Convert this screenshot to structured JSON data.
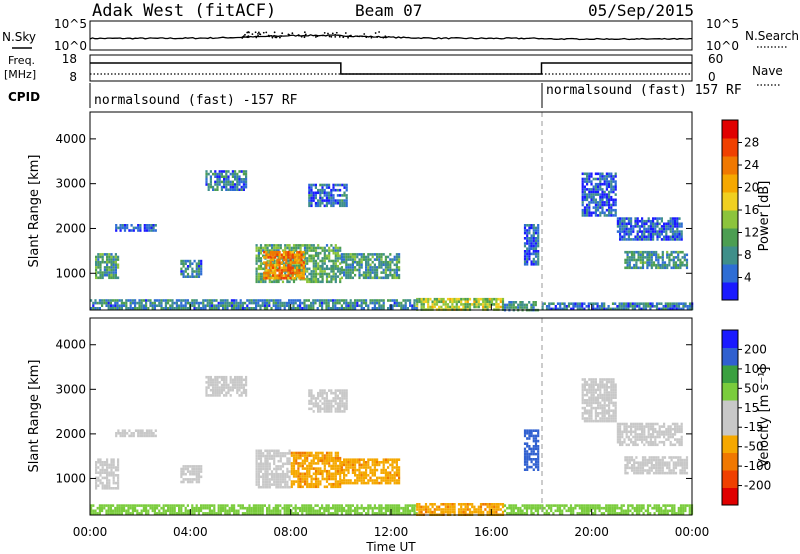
{
  "header": {
    "station": "Adak West (fitACF)",
    "beam": "Beam 07",
    "date": "05/Sep/2015"
  },
  "noise_panel": {
    "left_label": "N.Sky",
    "right_label": "N.Search",
    "left_ticks": [
      "10^5",
      "10^0"
    ],
    "right_ticks": [
      "10^5",
      "10^0"
    ]
  },
  "freq_panel": {
    "left_label_line1": "Freq.",
    "left_label_line2": "[MHz]",
    "right_label": "Nave",
    "left_ticks": [
      "18",
      "8"
    ],
    "right_ticks": [
      "60",
      "0"
    ]
  },
  "cpid": {
    "label": "CPID",
    "segments": [
      {
        "start_hour": 0,
        "text": "normalsound (fast) -157 RF"
      },
      {
        "start_hour": 18,
        "text": "normalsound (fast) 157 RF"
      }
    ]
  },
  "xaxis": {
    "title": "Time UT",
    "ticks": [
      "00:00",
      "04:00",
      "08:00",
      "12:00",
      "16:00",
      "20:00",
      "00:00"
    ],
    "tick_hours": [
      0,
      4,
      8,
      12,
      16,
      20,
      24
    ],
    "range": [
      0,
      24
    ]
  },
  "colors": {
    "power": [
      "#1a1aff",
      "#2e6dd4",
      "#3f8f8a",
      "#4c9e52",
      "#8cc43c",
      "#f0d020",
      "#f5a800",
      "#f07800",
      "#f04000",
      "#e00000"
    ],
    "velocity": [
      "#e00000",
      "#f04000",
      "#f07800",
      "#f5a800",
      "#c8c8c8",
      "#c8c8c8",
      "#7acc3c",
      "#3aa040",
      "#3060d0",
      "#1a1aff"
    ]
  },
  "chart_data": [
    {
      "type": "heatmap",
      "name": "power",
      "ylabel": "Slant Range [km]",
      "yticks": [
        1000,
        2000,
        3000,
        4000
      ],
      "ylim": [
        180,
        4600
      ],
      "xlim": [
        0,
        24
      ],
      "colorbar": {
        "label": "Power [dB]",
        "ticks": [
          "4",
          "8",
          "12",
          "16",
          "20",
          "24",
          "28"
        ],
        "range": [
          0,
          30
        ]
      },
      "regions": [
        {
          "x": [
            0.2,
            1.1
          ],
          "y": [
            900,
            1450
          ],
          "v": 9
        },
        {
          "x": [
            1.0,
            2.6
          ],
          "y": [
            1950,
            2100
          ],
          "v": 4
        },
        {
          "x": [
            3.6,
            4.4
          ],
          "y": [
            900,
            1300
          ],
          "v": 7
        },
        {
          "x": [
            4.6,
            6.2
          ],
          "y": [
            2850,
            3300
          ],
          "v": 6
        },
        {
          "x": [
            6.6,
            10.0
          ],
          "y": [
            800,
            1650
          ],
          "v": 10
        },
        {
          "x": [
            6.9,
            8.5
          ],
          "y": [
            900,
            1500
          ],
          "v": 22
        },
        {
          "x": [
            10.0,
            12.3
          ],
          "y": [
            900,
            1450
          ],
          "v": 9
        },
        {
          "x": [
            8.7,
            10.2
          ],
          "y": [
            2500,
            3000
          ],
          "v": 5
        },
        {
          "x": [
            13.0,
            16.5
          ],
          "y": [
            200,
            450
          ],
          "v": 14
        },
        {
          "x": [
            16.5,
            17.9
          ],
          "y": [
            200,
            380
          ],
          "v": 8
        },
        {
          "x": [
            17.3,
            17.9
          ],
          "y": [
            1200,
            2100
          ],
          "v": 4
        },
        {
          "x": [
            18.0,
            24.0
          ],
          "y": [
            200,
            350
          ],
          "v": 6
        },
        {
          "x": [
            19.6,
            21.0
          ],
          "y": [
            2300,
            3250
          ],
          "v": 4
        },
        {
          "x": [
            21.0,
            23.6
          ],
          "y": [
            1750,
            2250
          ],
          "v": 4
        },
        {
          "x": [
            21.3,
            23.8
          ],
          "y": [
            1100,
            1500
          ],
          "v": 8
        },
        {
          "x": [
            0.0,
            13.0
          ],
          "y": [
            200,
            420
          ],
          "v": 7
        }
      ]
    },
    {
      "type": "heatmap",
      "name": "velocity",
      "ylabel": "Slant Range [km]",
      "yticks": [
        1000,
        2000,
        3000,
        4000
      ],
      "ylim": [
        180,
        4600
      ],
      "xlim": [
        0,
        24
      ],
      "colorbar": {
        "label": "Velocity [m s⁻¹]",
        "ticks": [
          "-200",
          "-100",
          "-50",
          "-15",
          "15",
          "50",
          "100",
          "200"
        ],
        "range": [
          -250,
          250
        ]
      },
      "regions": [
        {
          "x": [
            0.2,
            1.1
          ],
          "y": [
            800,
            1450
          ],
          "v": 0
        },
        {
          "x": [
            1.0,
            2.6
          ],
          "y": [
            1950,
            2100
          ],
          "v": 0
        },
        {
          "x": [
            3.6,
            4.4
          ],
          "y": [
            900,
            1300
          ],
          "v": 0
        },
        {
          "x": [
            4.6,
            6.2
          ],
          "y": [
            2850,
            3300
          ],
          "v": 0
        },
        {
          "x": [
            6.6,
            8.0
          ],
          "y": [
            800,
            1650
          ],
          "v": 0
        },
        {
          "x": [
            8.0,
            10.0
          ],
          "y": [
            800,
            1600
          ],
          "v": -40
        },
        {
          "x": [
            10.0,
            12.3
          ],
          "y": [
            900,
            1450
          ],
          "v": -40
        },
        {
          "x": [
            8.7,
            10.2
          ],
          "y": [
            2500,
            3000
          ],
          "v": 0
        },
        {
          "x": [
            0.0,
            13.0
          ],
          "y": [
            200,
            420
          ],
          "v": 30
        },
        {
          "x": [
            13.0,
            16.5
          ],
          "y": [
            200,
            450
          ],
          "v": -40
        },
        {
          "x": [
            16.5,
            24.0
          ],
          "y": [
            200,
            420
          ],
          "v": 35
        },
        {
          "x": [
            17.3,
            17.9
          ],
          "y": [
            1200,
            2100
          ],
          "v": 150
        },
        {
          "x": [
            19.6,
            21.0
          ],
          "y": [
            2300,
            3250
          ],
          "v": 0
        },
        {
          "x": [
            21.0,
            23.6
          ],
          "y": [
            1750,
            2250
          ],
          "v": 0
        },
        {
          "x": [
            21.3,
            23.8
          ],
          "y": [
            1100,
            1500
          ],
          "v": 0
        }
      ]
    }
  ]
}
